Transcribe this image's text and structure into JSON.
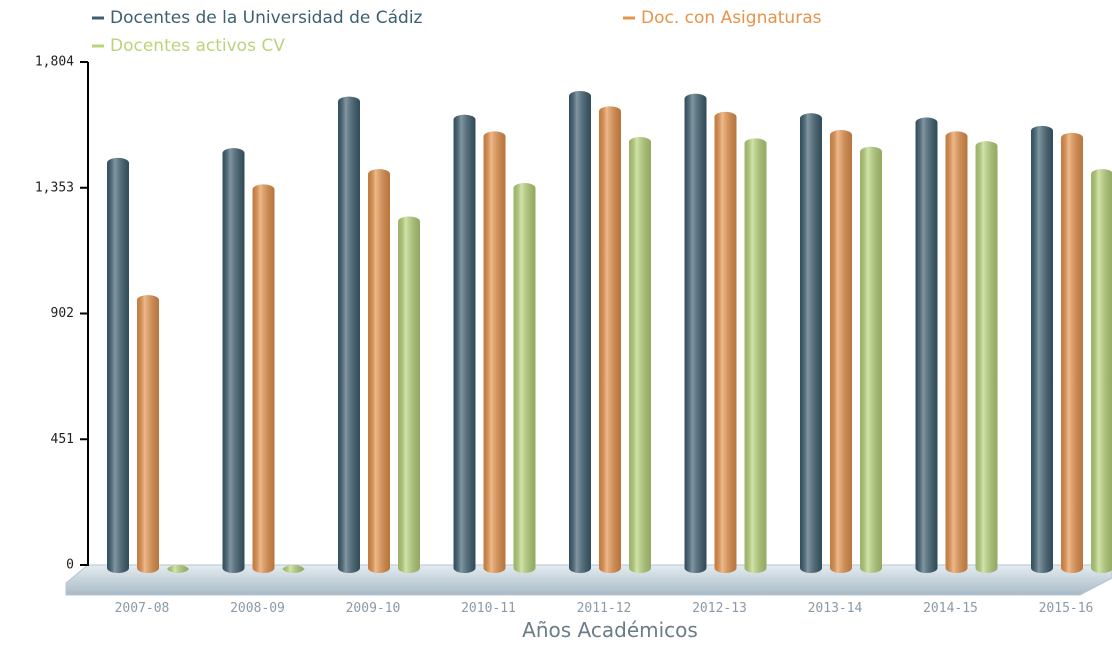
{
  "chart_data": {
    "type": "bar",
    "x_label": "Años Académicos",
    "categories": [
      "2007-08",
      "2008-09",
      "2009-10",
      "2010-11",
      "2011-12",
      "2012-13",
      "2013-14",
      "2014-15",
      "2015-16"
    ],
    "series": [
      {
        "name": "Docentes de la Universidad de Cádiz",
        "color": "#3d5f70",
        "values": [
          1460,
          1495,
          1680,
          1615,
          1700,
          1690,
          1620,
          1605,
          1575
        ]
      },
      {
        "name": "Doc. con Asignaturas",
        "color": "#e8934a",
        "values": [
          968,
          1365,
          1420,
          1555,
          1645,
          1625,
          1560,
          1555,
          1550
        ]
      },
      {
        "name": "Docentes activos CV",
        "color": "#b9d57a",
        "values": [
          0,
          0,
          1250,
          1370,
          1535,
          1530,
          1500,
          1520,
          1420
        ]
      }
    ],
    "ylim": [
      0,
      1804
    ],
    "yticks": [
      0,
      451,
      902,
      {
        "value": 1353,
        "label": "1,353"
      },
      {
        "value": 1804,
        "label": "1,804"
      }
    ]
  }
}
